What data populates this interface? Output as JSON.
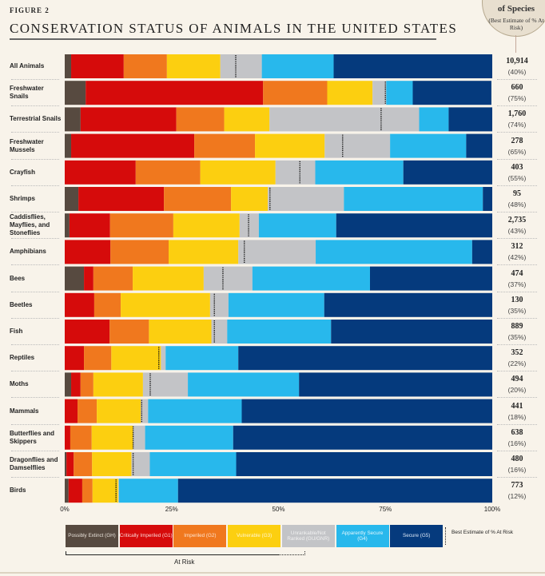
{
  "figure_label": "FIGURE 2",
  "title": "CONSERVATION STATUS OF ANIMALS IN THE UNITED STATES",
  "badge": {
    "line1": "of Species",
    "line2": "(Best Estimate of % At Risk)"
  },
  "chart_data": {
    "type": "bar",
    "orientation": "horizontal",
    "stacked": true,
    "title": "CONSERVATION STATUS OF ANIMALS IN THE UNITED STATES",
    "xlabel": "",
    "ylabel": "",
    "xlim": [
      0,
      100
    ],
    "x_ticks": [
      "0%",
      "25%",
      "50%",
      "75%",
      "100%"
    ],
    "categories": [
      "All Animals",
      "Freshwater Snails",
      "Terrestrial Snails",
      "Freshwater Mussels",
      "Crayfish",
      "Shrimps",
      "Caddisflies, Mayflies, and Stoneflies",
      "Amphibians",
      "Bees",
      "Beetles",
      "Fish",
      "Reptiles",
      "Moths",
      "Mammals",
      "Butterflies and Skippers",
      "Dragonflies and Damselflies",
      "Birds"
    ],
    "series": [
      {
        "name": "Possibly Extinct (GH)",
        "color": "#574a40",
        "values": [
          1.5,
          4.9,
          3.7,
          1.5,
          0,
          3.2,
          1.1,
          0,
          4.5,
          0,
          0,
          0,
          1.5,
          0,
          0,
          0.4,
          0.9
        ]
      },
      {
        "name": "Critically Imperiled (G1)",
        "color": "#d60b0b",
        "values": [
          12.3,
          41.5,
          22.4,
          28.8,
          16.6,
          20,
          9.5,
          10.7,
          2.2,
          6.9,
          10.5,
          4.5,
          2.2,
          3,
          1.3,
          1.7,
          3.2
        ]
      },
      {
        "name": "Imperiled (G2)",
        "color": "#f0781e",
        "values": [
          10.1,
          15,
          11.2,
          14.2,
          15.1,
          15.7,
          14.8,
          13.6,
          9.2,
          6.2,
          9.2,
          6.4,
          3,
          4.5,
          5,
          4.3,
          2.4
        ]
      },
      {
        "name": "Vulnerable (G3)",
        "color": "#fccf10",
        "values": [
          12.5,
          10.6,
          10.6,
          16.3,
          17.6,
          8.6,
          15.5,
          16.3,
          16.6,
          20.9,
          14.6,
          11.6,
          11.6,
          10.3,
          9.7,
          9.2,
          6
        ]
      },
      {
        "name": "Unrankable/Not Ranked (GU/GNR)",
        "color": "#c3c4c7",
        "values": [
          9.7,
          3.2,
          35,
          15.3,
          9.3,
          17.8,
          4.5,
          18.1,
          11.4,
          4.3,
          3.7,
          1.1,
          10.5,
          1.7,
          2.8,
          4.3,
          0.2
        ]
      },
      {
        "name": "Apparently Secure (G4)",
        "color": "#28b8ec",
        "values": [
          16.8,
          6.2,
          6.9,
          17.8,
          20.6,
          32.5,
          18.1,
          36.6,
          27.5,
          22.4,
          24.3,
          17,
          26,
          21.9,
          20.6,
          20.2,
          13.8
        ]
      },
      {
        "name": "Secure (G5)",
        "color": "#053a7d",
        "values": [
          37.1,
          18.4,
          10.2,
          6.1,
          20.8,
          2.2,
          36.5,
          4.7,
          28.6,
          39.3,
          37.7,
          59.4,
          45.2,
          58.6,
          60.6,
          59.9,
          73.5
        ]
      }
    ],
    "best_estimate_at_risk_pct": [
      40,
      75,
      74,
      65,
      55,
      48,
      43,
      42,
      37,
      35,
      35,
      22,
      20,
      18,
      16,
      16,
      12
    ],
    "species_counts": [
      "10,914",
      "660",
      "1,760",
      "278",
      "403",
      "95",
      "2,735",
      "312",
      "474",
      "130",
      "889",
      "352",
      "494",
      "441",
      "638",
      "480",
      "773"
    ],
    "pct_labels": [
      "(40%)",
      "(75%)",
      "(74%)",
      "(65%)",
      "(55%)",
      "(48%)",
      "(43%)",
      "(42%)",
      "(37%)",
      "(35%)",
      "(35%)",
      "(22%)",
      "(20%)",
      "(18%)",
      "(16%)",
      "(16%)",
      "(12%)"
    ],
    "legend": {
      "placement": "bottom",
      "items": [
        {
          "label": "Possibly Extinct (GH)",
          "color": "#574a40",
          "text_color": "#e8e2da"
        },
        {
          "label": "Critically Imperiled (G1)",
          "color": "#d60b0b",
          "text_color": "#fbd6d6"
        },
        {
          "label": "Imperiled (G2)",
          "color": "#f0781e",
          "text_color": "#fde3cf"
        },
        {
          "label": "Vulnerable (G3)",
          "color": "#fccf10",
          "text_color": "#fff7d0"
        },
        {
          "label": "Unrankable/Not Ranked (GU/GNR)",
          "color": "#c3c4c7",
          "text_color": "#f2f2f2"
        },
        {
          "label": "Apparently Secure (G4)",
          "color": "#28b8ec",
          "text_color": "#e3f6fd"
        },
        {
          "label": "Secure (G5)",
          "color": "#053a7d",
          "text_color": "#dde8f7"
        }
      ],
      "marker_label": "Best Estimate of % At Risk",
      "bracket_label": "At Risk"
    },
    "grid": false
  }
}
